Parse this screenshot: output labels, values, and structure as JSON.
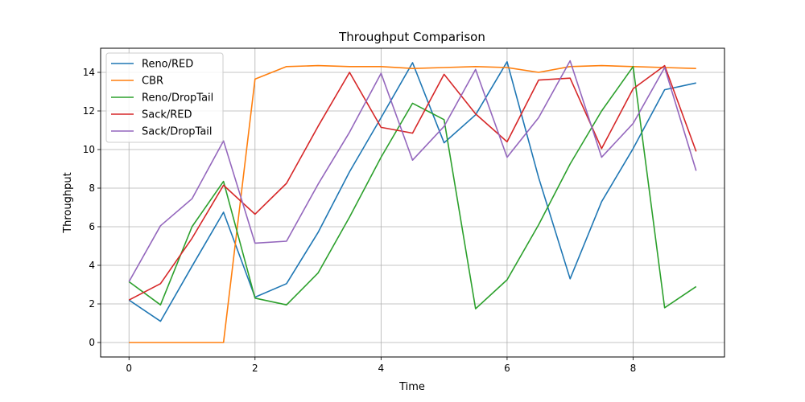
{
  "chart_data": {
    "type": "line",
    "title": "Throughput Comparison",
    "xlabel": "Time",
    "ylabel": "Throughput",
    "xlim": [
      -0.45,
      9.45
    ],
    "ylim": [
      -0.75,
      15.25
    ],
    "xticks": [
      0,
      2,
      4,
      6,
      8
    ],
    "yticks": [
      0,
      2,
      4,
      6,
      8,
      10,
      12,
      14
    ],
    "grid": true,
    "legend_position": "top-left",
    "x": [
      0,
      0.5,
      1,
      1.5,
      2,
      2.5,
      3,
      3.5,
      4,
      4.5,
      5,
      5.5,
      6,
      6.5,
      7,
      7.5,
      8,
      8.5,
      9
    ],
    "series": [
      {
        "name": "Reno/RED",
        "color": "#1f77b4",
        "values": [
          2.2,
          1.1,
          3.95,
          6.75,
          2.35,
          3.05,
          5.7,
          8.85,
          11.65,
          14.5,
          10.35,
          11.8,
          14.55,
          8.55,
          3.3,
          7.3,
          10.05,
          13.1,
          13.45
        ]
      },
      {
        "name": "CBR",
        "color": "#ff7f0e",
        "values": [
          0,
          0,
          0,
          0,
          13.65,
          14.3,
          14.35,
          14.3,
          14.3,
          14.2,
          14.25,
          14.3,
          14.25,
          14.0,
          14.3,
          14.35,
          14.3,
          14.25,
          14.2
        ]
      },
      {
        "name": "Reno/DropTail",
        "color": "#2ca02c",
        "values": [
          3.15,
          1.95,
          6.0,
          8.35,
          2.3,
          1.95,
          3.6,
          6.5,
          9.6,
          12.4,
          11.55,
          1.75,
          3.25,
          6.1,
          9.25,
          12.0,
          14.3,
          1.8,
          2.9
        ]
      },
      {
        "name": "Sack/RED",
        "color": "#d62728",
        "values": [
          2.2,
          3.05,
          5.4,
          8.15,
          6.65,
          8.25,
          11.2,
          14.0,
          11.15,
          10.85,
          13.9,
          11.85,
          10.4,
          13.6,
          13.7,
          10.05,
          13.15,
          14.35,
          9.9
        ]
      },
      {
        "name": "Sack/DropTail",
        "color": "#9467bd",
        "values": [
          3.15,
          6.05,
          7.45,
          10.45,
          5.15,
          5.25,
          8.2,
          10.9,
          13.95,
          9.45,
          11.2,
          14.15,
          9.6,
          11.65,
          14.6,
          9.6,
          11.35,
          14.25,
          8.9
        ]
      }
    ]
  }
}
